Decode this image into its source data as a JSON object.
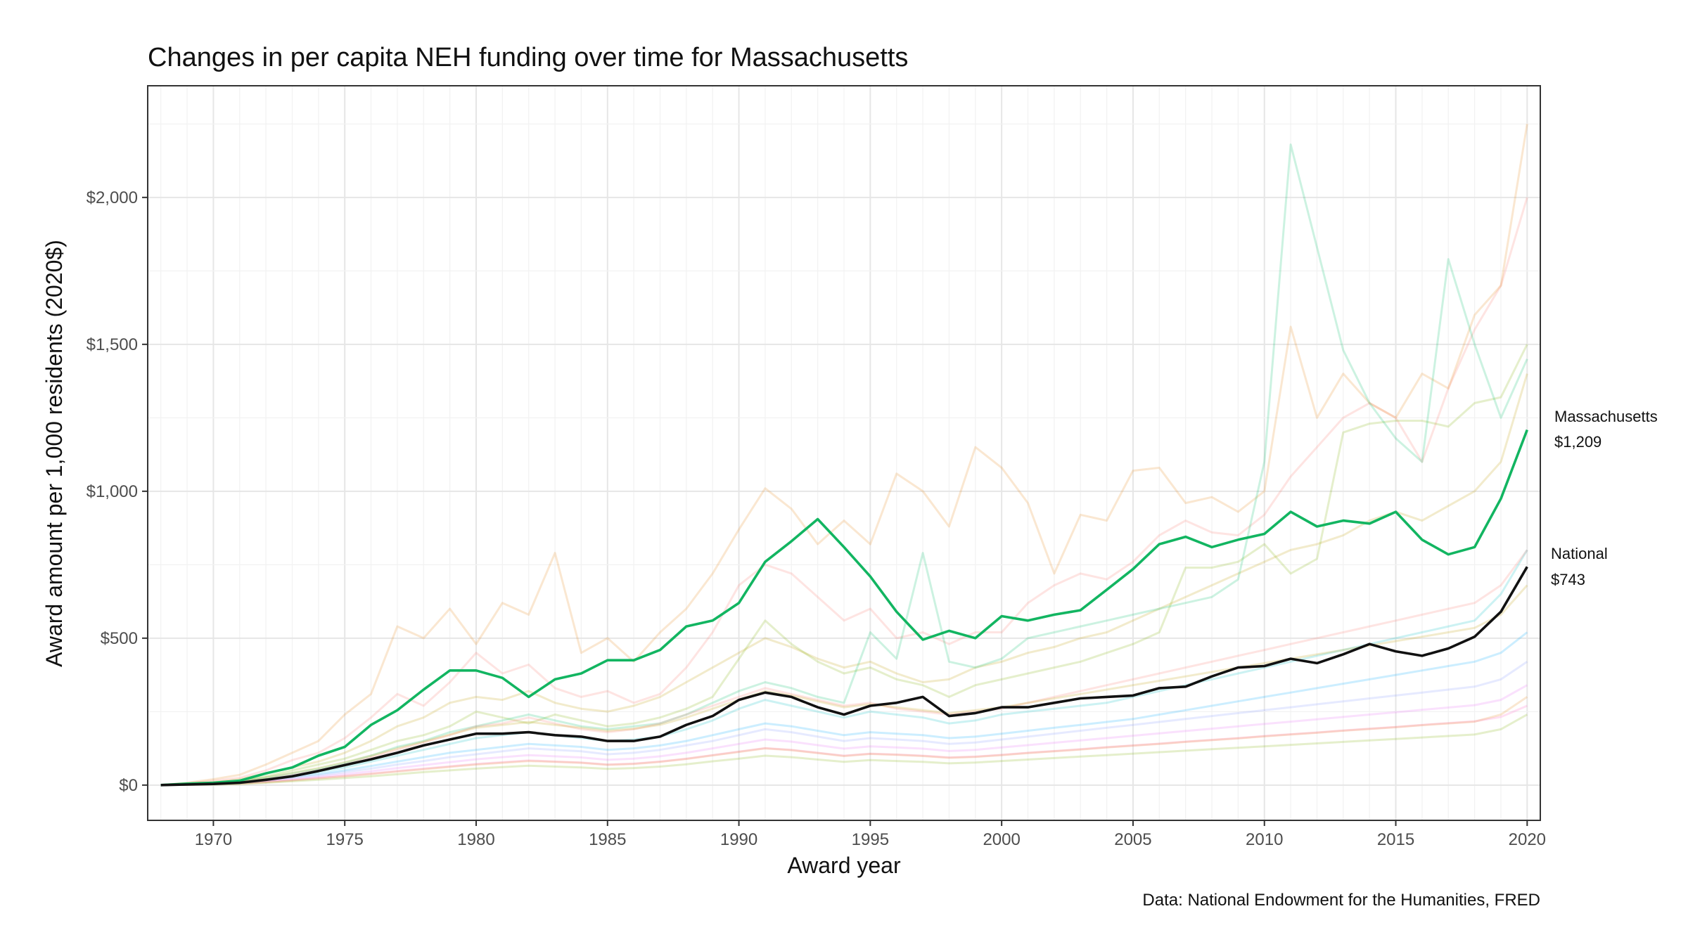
{
  "chart_data": {
    "type": "line",
    "title": "Changes in per capita NEH funding over time for Massachusetts",
    "xlabel": "Award year",
    "ylabel": "Award amount per 1,000 residents (2020$)",
    "caption": "Data: National Endowment for the Humanities, FRED",
    "xlim": [
      1967.5,
      2020.5
    ],
    "ylim": [
      -120,
      2380
    ],
    "x_ticks": [
      1970,
      1975,
      1980,
      1985,
      1990,
      1995,
      2000,
      2005,
      2010,
      2015,
      2020
    ],
    "x_tick_labels": [
      "1970",
      "1975",
      "1980",
      "1985",
      "1990",
      "1995",
      "2000",
      "2005",
      "2010",
      "2015",
      "2020"
    ],
    "y_ticks": [
      0,
      500,
      1000,
      1500,
      2000
    ],
    "y_tick_labels": [
      "$0",
      "$500",
      "$1,000",
      "$1,500",
      "$2,000"
    ],
    "grid": true,
    "x": [
      1968,
      1969,
      1970,
      1971,
      1972,
      1973,
      1974,
      1975,
      1976,
      1977,
      1978,
      1979,
      1980,
      1981,
      1982,
      1983,
      1984,
      1985,
      1986,
      1987,
      1988,
      1989,
      1990,
      1991,
      1992,
      1993,
      1994,
      1995,
      1996,
      1997,
      1998,
      1999,
      2000,
      2001,
      2002,
      2003,
      2004,
      2005,
      2006,
      2007,
      2008,
      2009,
      2010,
      2011,
      2012,
      2013,
      2014,
      2015,
      2016,
      2017,
      2018,
      2019,
      2020
    ],
    "highlight_series": [
      {
        "name": "Massachusetts",
        "end_label": "$1,209",
        "color": "#12b561",
        "values": [
          0,
          5,
          8,
          15,
          40,
          60,
          100,
          130,
          205,
          255,
          325,
          390,
          390,
          365,
          300,
          360,
          380,
          425,
          425,
          460,
          540,
          560,
          620,
          760,
          830,
          905,
          810,
          710,
          590,
          495,
          525,
          500,
          575,
          560,
          580,
          595,
          665,
          735,
          820,
          845,
          810,
          835,
          855,
          930,
          880,
          900,
          890,
          930,
          835,
          785,
          810,
          975,
          1209
        ]
      },
      {
        "name": "National",
        "end_label": "$743",
        "color": "#111111",
        "values": [
          0,
          2,
          4,
          8,
          18,
          30,
          48,
          68,
          88,
          110,
          135,
          155,
          175,
          175,
          180,
          170,
          165,
          150,
          150,
          165,
          205,
          235,
          290,
          315,
          300,
          265,
          240,
          270,
          280,
          300,
          235,
          245,
          265,
          265,
          280,
          295,
          300,
          305,
          330,
          335,
          370,
          400,
          405,
          430,
          415,
          445,
          480,
          455,
          440,
          465,
          505,
          590,
          743
        ]
      }
    ],
    "background_series_palette": [
      "#f8766d",
      "#e7861b",
      "#c09b00",
      "#7cae00",
      "#00be67",
      "#00bfc4",
      "#00a9ff",
      "#8494ff",
      "#e76bf3",
      "#ff61c3"
    ],
    "background_series": [
      [
        0,
        6,
        15,
        25,
        50,
        85,
        110,
        160,
        230,
        310,
        270,
        350,
        450,
        380,
        410,
        330,
        300,
        320,
        280,
        310,
        400,
        520,
        680,
        750,
        720,
        640,
        560,
        600,
        500,
        520,
        480,
        520,
        520,
        620,
        680,
        720,
        700,
        760,
        850,
        900,
        860,
        850,
        920,
        1050,
        1150,
        1250,
        1300,
        1250,
        1100,
        1350,
        1550,
        1700,
        2000
      ],
      [
        0,
        8,
        20,
        35,
        70,
        110,
        150,
        240,
        310,
        540,
        500,
        600,
        480,
        620,
        580,
        790,
        450,
        500,
        420,
        520,
        600,
        720,
        870,
        1010,
        940,
        820,
        900,
        820,
        1060,
        1000,
        880,
        1150,
        1080,
        960,
        720,
        920,
        900,
        1070,
        1080,
        960,
        980,
        930,
        1000,
        1560,
        1250,
        1400,
        1300,
        1250,
        1400,
        1350,
        1600,
        1700,
        2250
      ],
      [
        0,
        5,
        10,
        20,
        40,
        60,
        80,
        110,
        150,
        200,
        230,
        280,
        300,
        290,
        320,
        280,
        260,
        250,
        270,
        300,
        350,
        400,
        450,
        500,
        470,
        430,
        400,
        420,
        380,
        350,
        360,
        400,
        420,
        450,
        470,
        500,
        520,
        560,
        600,
        640,
        680,
        720,
        760,
        800,
        820,
        850,
        900,
        930,
        900,
        950,
        1000,
        1100,
        1400
      ],
      [
        0,
        4,
        9,
        15,
        30,
        50,
        70,
        90,
        120,
        150,
        170,
        200,
        250,
        230,
        210,
        240,
        220,
        200,
        210,
        230,
        260,
        300,
        430,
        560,
        480,
        420,
        380,
        400,
        360,
        340,
        300,
        340,
        360,
        380,
        400,
        420,
        450,
        480,
        520,
        740,
        740,
        760,
        820,
        720,
        770,
        1200,
        1230,
        1240,
        1240,
        1220,
        1300,
        1320,
        1500
      ],
      [
        0,
        3,
        7,
        12,
        25,
        40,
        55,
        75,
        100,
        130,
        150,
        180,
        200,
        220,
        240,
        220,
        200,
        190,
        200,
        210,
        240,
        280,
        320,
        350,
        330,
        300,
        280,
        520,
        430,
        790,
        420,
        400,
        430,
        500,
        520,
        540,
        560,
        580,
        600,
        620,
        640,
        700,
        1100,
        2180,
        1830,
        1480,
        1300,
        1180,
        1100,
        1790,
        1500,
        1250,
        1450
      ],
      [
        0,
        3,
        6,
        10,
        20,
        32,
        45,
        60,
        80,
        100,
        120,
        140,
        160,
        170,
        180,
        170,
        160,
        150,
        155,
        165,
        190,
        220,
        260,
        290,
        270,
        250,
        230,
        250,
        240,
        230,
        210,
        220,
        240,
        250,
        260,
        270,
        280,
        300,
        320,
        340,
        360,
        380,
        400,
        420,
        440,
        460,
        480,
        500,
        520,
        540,
        560,
        650,
        800
      ],
      [
        0,
        2,
        5,
        9,
        18,
        28,
        38,
        50,
        65,
        80,
        95,
        110,
        120,
        130,
        140,
        135,
        130,
        120,
        125,
        135,
        150,
        170,
        190,
        210,
        200,
        185,
        170,
        180,
        175,
        170,
        160,
        165,
        175,
        185,
        195,
        205,
        215,
        225,
        240,
        255,
        270,
        285,
        300,
        315,
        330,
        345,
        360,
        375,
        390,
        405,
        420,
        450,
        520
      ],
      [
        0,
        2,
        4,
        8,
        15,
        24,
        33,
        44,
        56,
        70,
        82,
        95,
        105,
        115,
        125,
        120,
        115,
        105,
        110,
        120,
        135,
        150,
        170,
        190,
        180,
        165,
        150,
        160,
        155,
        150,
        140,
        145,
        155,
        165,
        175,
        185,
        195,
        205,
        215,
        225,
        235,
        245,
        255,
        265,
        275,
        285,
        295,
        305,
        315,
        325,
        335,
        360,
        420
      ],
      [
        0,
        2,
        4,
        7,
        13,
        20,
        28,
        37,
        47,
        58,
        68,
        78,
        88,
        95,
        102,
        98,
        94,
        86,
        90,
        98,
        110,
        125,
        140,
        155,
        148,
        136,
        124,
        132,
        128,
        124,
        116,
        120,
        128,
        136,
        144,
        152,
        160,
        168,
        176,
        184,
        192,
        200,
        208,
        216,
        224,
        232,
        240,
        248,
        256,
        264,
        272,
        290,
        340
      ],
      [
        0,
        1,
        3,
        6,
        11,
        17,
        24,
        31,
        39,
        48,
        56,
        64,
        72,
        78,
        84,
        80,
        77,
        70,
        73,
        80,
        90,
        102,
        114,
        126,
        120,
        110,
        100,
        107,
        104,
        100,
        94,
        97,
        103,
        110,
        116,
        122,
        129,
        135,
        141,
        148,
        154,
        160,
        167,
        173,
        179,
        186,
        192,
        198,
        205,
        211,
        217,
        232,
        270
      ],
      [
        0,
        2,
        5,
        10,
        20,
        35,
        50,
        70,
        95,
        120,
        145,
        170,
        200,
        210,
        230,
        210,
        190,
        180,
        190,
        210,
        240,
        270,
        300,
        330,
        310,
        290,
        270,
        280,
        260,
        250,
        240,
        250,
        260,
        280,
        300,
        320,
        340,
        360,
        380,
        400,
        420,
        440,
        460,
        480,
        500,
        520,
        540,
        560,
        580,
        600,
        620,
        680,
        800
      ],
      [
        0,
        1,
        3,
        5,
        10,
        16,
        23,
        30,
        38,
        46,
        54,
        62,
        70,
        76,
        82,
        79,
        76,
        69,
        72,
        79,
        89,
        101,
        113,
        125,
        119,
        109,
        99,
        106,
        103,
        99,
        93,
        96,
        102,
        109,
        115,
        121,
        128,
        134,
        140,
        147,
        153,
        159,
        166,
        172,
        178,
        185,
        191,
        197,
        204,
        210,
        216,
        240,
        300
      ],
      [
        0,
        3,
        7,
        13,
        26,
        42,
        58,
        78,
        100,
        125,
        148,
        172,
        195,
        205,
        215,
        205,
        195,
        185,
        192,
        205,
        230,
        260,
        290,
        320,
        305,
        285,
        265,
        275,
        265,
        255,
        245,
        255,
        265,
        280,
        295,
        310,
        325,
        340,
        355,
        370,
        385,
        400,
        415,
        430,
        445,
        460,
        475,
        490,
        505,
        520,
        535,
        580,
        680
      ],
      [
        0,
        1,
        2,
        4,
        8,
        13,
        18,
        24,
        30,
        37,
        44,
        50,
        56,
        61,
        66,
        63,
        60,
        55,
        58,
        63,
        71,
        81,
        90,
        100,
        95,
        87,
        79,
        85,
        82,
        79,
        74,
        77,
        82,
        87,
        92,
        97,
        102,
        107,
        112,
        117,
        122,
        127,
        132,
        137,
        142,
        147,
        152,
        157,
        162,
        167,
        172,
        190,
        240
      ]
    ]
  }
}
